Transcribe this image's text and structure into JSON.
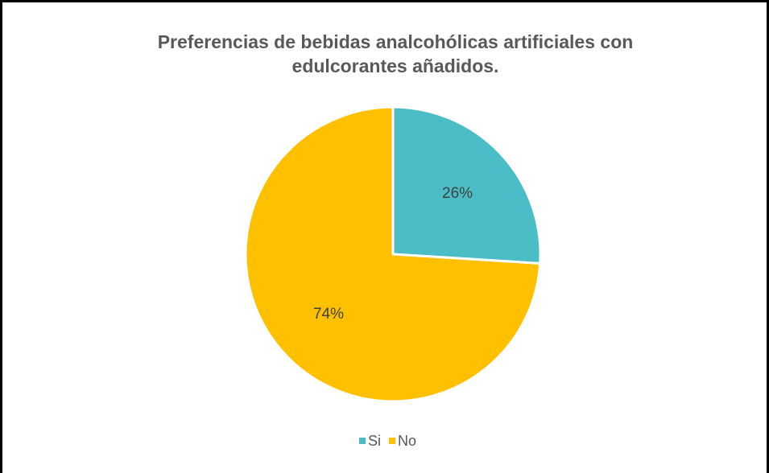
{
  "chart_data": {
    "type": "pie",
    "title": "Preferencias de bebidas analcohólicas artificiales con edulcorantes añadidos.",
    "categories": [
      "Si",
      "No"
    ],
    "values": [
      26,
      74
    ],
    "value_labels": [
      "26%",
      "74%"
    ],
    "colors": [
      "#4bbdc6",
      "#ffc000"
    ],
    "legend": "bottom"
  }
}
